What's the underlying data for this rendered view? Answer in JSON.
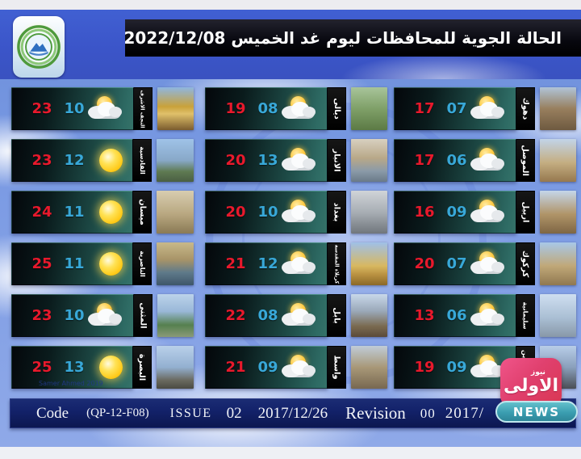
{
  "header": {
    "title": "الحالة الجوية للمحافظات ليوم غد الخميس  2022/12/08",
    "logo_label": "iraq-meteorological-organization-logo"
  },
  "columns": [
    {
      "cards": [
        {
          "city": "النجف الاشرف",
          "max": "23",
          "min": "10",
          "icon": "sun-cloud",
          "photo": "najaf-shrine"
        },
        {
          "city": "القادسية",
          "max": "23",
          "min": "12",
          "icon": "sun",
          "photo": "qadisiyah-monument"
        },
        {
          "city": "ميسان",
          "max": "24",
          "min": "11",
          "icon": "sun",
          "photo": "maysan-tower"
        },
        {
          "city": "الناصرية",
          "max": "25",
          "min": "11",
          "icon": "sun",
          "photo": "nasiriyah-river"
        },
        {
          "city": "المثنى",
          "max": "23",
          "min": "10",
          "icon": "sun-cloud",
          "photo": "muthanna-arch"
        },
        {
          "city": "البصرة",
          "max": "25",
          "min": "13",
          "icon": "sun",
          "photo": "basra-statue"
        }
      ]
    },
    {
      "cards": [
        {
          "city": "ديالى",
          "max": "19",
          "min": "08",
          "icon": "sun-cloud",
          "photo": "diyala-gardens"
        },
        {
          "city": "الانبار",
          "max": "20",
          "min": "13",
          "icon": "sun-cloud",
          "photo": "anbar-cliffs"
        },
        {
          "city": "بغداد",
          "max": "20",
          "min": "10",
          "icon": "sun-cloud",
          "photo": "baghdad-monument"
        },
        {
          "city": "كربلاء المقدسة",
          "max": "21",
          "min": "12",
          "icon": "sun-cloud",
          "photo": "karbala-mosque"
        },
        {
          "city": "بابل",
          "max": "22",
          "min": "08",
          "icon": "sun-cloud",
          "photo": "babil-towers"
        },
        {
          "city": "واسط",
          "max": "21",
          "min": "09",
          "icon": "sun-cloud",
          "photo": "wasit-arch"
        }
      ]
    },
    {
      "cards": [
        {
          "city": "دهوك",
          "max": "17",
          "min": "07",
          "icon": "sun-cloud",
          "photo": "duhok-canyon"
        },
        {
          "city": "الموصل",
          "max": "17",
          "min": "06",
          "icon": "sun-cloud",
          "photo": "mosul-minaret"
        },
        {
          "city": "اربيل",
          "max": "16",
          "min": "09",
          "icon": "sun-cloud",
          "photo": "erbil-citadel"
        },
        {
          "city": "كركوك",
          "max": "20",
          "min": "07",
          "icon": "sun-cloud",
          "photo": "kirkuk-citadel"
        },
        {
          "city": "سليمانية",
          "max": "13",
          "min": "06",
          "icon": "sun-cloud",
          "photo": "sulaymaniyah-monument"
        },
        {
          "city": "صلاح الدين",
          "max": "19",
          "min": "09",
          "icon": "sun-cloud",
          "photo": "salahaddin-statue"
        }
      ]
    }
  ],
  "footer": {
    "code_label": "Code",
    "code_value": "(QP-12-F08)",
    "issue_label": "ISSUE",
    "issue_number": "02",
    "issue_date": "2017/12/26",
    "revision_label": "Revision",
    "revision_number": "00",
    "revision_date": "2017/"
  },
  "credit": "Samer Ahmed 2019",
  "news_logo": {
    "main": "الاولى",
    "small": "نيوز",
    "band": "NEWS"
  },
  "colors": {
    "max_temp": "#e8192c",
    "min_temp": "#38a8d8",
    "banner_blue": "#3b55c9",
    "title_strip": "#07070e",
    "card_teal": "#2e6b64",
    "footer_navy": "#13226a",
    "news_pink": "#e0406e",
    "news_teal": "#3a9db0"
  }
}
